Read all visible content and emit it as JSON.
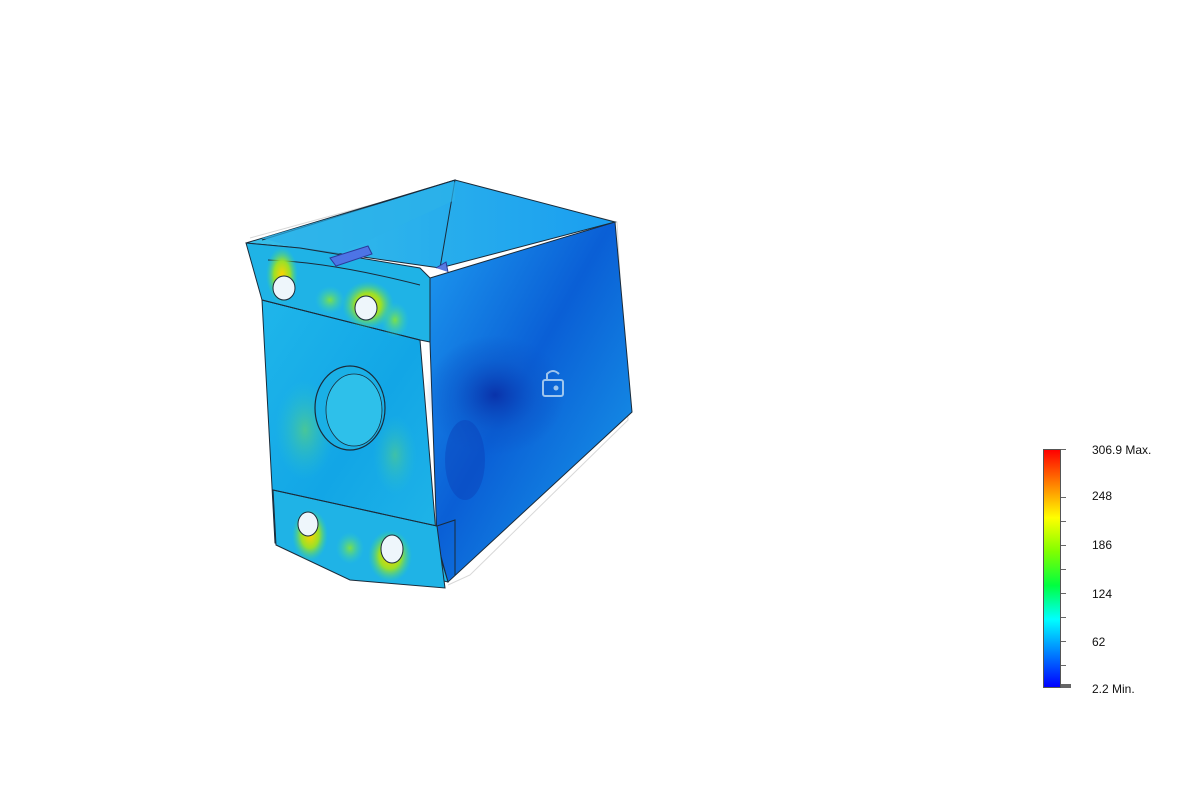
{
  "legend": {
    "max_label": "306.9 Max.",
    "min_label": "2.2 Min.",
    "ticks": [
      "248",
      "186",
      "124",
      "62"
    ],
    "max_value": 306.9,
    "min_value": 2.2,
    "colors": [
      "#ff0000",
      "#ff8000",
      "#ffff00",
      "#80ff00",
      "#00ff40",
      "#00ffff",
      "#0080ff",
      "#0000ff"
    ]
  },
  "model": {
    "lock_icon": "lock-icon"
  }
}
